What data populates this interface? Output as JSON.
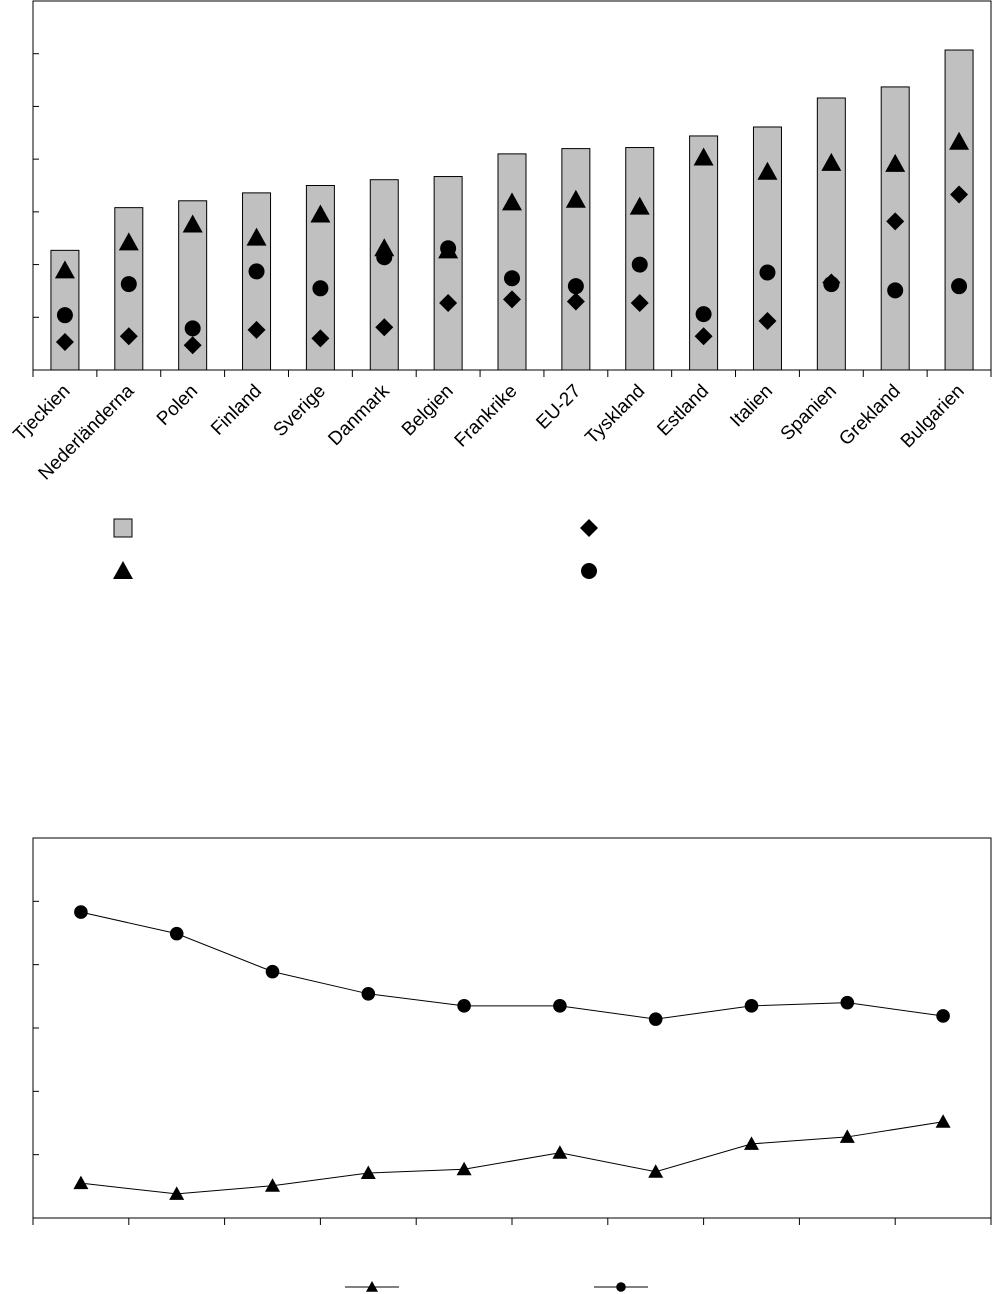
{
  "chart_data": [
    {
      "type": "bar",
      "categories": [
        "Tjeckien",
        "Nederländerna",
        "Polen",
        "Finland",
        "Sverige",
        "Danmark",
        "Belgien",
        "Frankrike",
        "EU-27",
        "Tyskland",
        "Estland",
        "Italien",
        "Spanien",
        "Grekland",
        "Bulgarien"
      ],
      "ylim": [
        0,
        7
      ],
      "yticks": [
        0,
        1,
        2,
        3,
        4,
        5,
        6,
        7
      ],
      "series": [
        {
          "marker": "bar",
          "color": "#c0c0c0",
          "values": [
            2.27,
            3.08,
            3.21,
            3.36,
            3.5,
            3.61,
            3.67,
            4.1,
            4.2,
            4.22,
            4.44,
            4.61,
            5.16,
            5.37,
            6.07
          ]
        },
        {
          "marker": "diamond",
          "color": "#000000",
          "values": [
            0.53,
            0.64,
            0.47,
            0.76,
            0.6,
            0.81,
            1.27,
            1.34,
            1.3,
            1.27,
            0.64,
            0.93,
            1.66,
            2.82,
            3.33
          ]
        },
        {
          "marker": "triangle",
          "color": "#000000",
          "values": [
            1.89,
            2.42,
            2.76,
            2.51,
            2.95,
            2.31,
            2.27,
            3.18,
            3.23,
            3.1,
            4.03,
            3.76,
            3.93,
            3.91,
            4.33
          ]
        },
        {
          "marker": "circle",
          "color": "#000000",
          "values": [
            1.04,
            1.63,
            0.79,
            1.87,
            1.55,
            2.14,
            2.31,
            1.74,
            1.59,
            2.0,
            1.06,
            1.85,
            1.63,
            1.51,
            1.59
          ]
        }
      ]
    },
    {
      "type": "line",
      "categories": [
        null,
        null,
        null,
        null,
        null,
        null,
        null,
        null,
        null,
        null
      ],
      "ylim": [
        0,
        6
      ],
      "yticks": [
        0,
        1,
        2,
        3,
        4,
        5,
        6
      ],
      "series": [
        {
          "marker": "triangle",
          "color": "#000000",
          "values": [
            0.55,
            0.38,
            0.51,
            0.71,
            0.77,
            1.03,
            0.73,
            1.17,
            1.28,
            1.52
          ]
        },
        {
          "marker": "circle",
          "color": "#000000",
          "values": [
            4.83,
            4.49,
            3.89,
            3.54,
            3.35,
            3.35,
            3.14,
            3.35,
            3.4,
            3.19
          ]
        }
      ]
    }
  ]
}
